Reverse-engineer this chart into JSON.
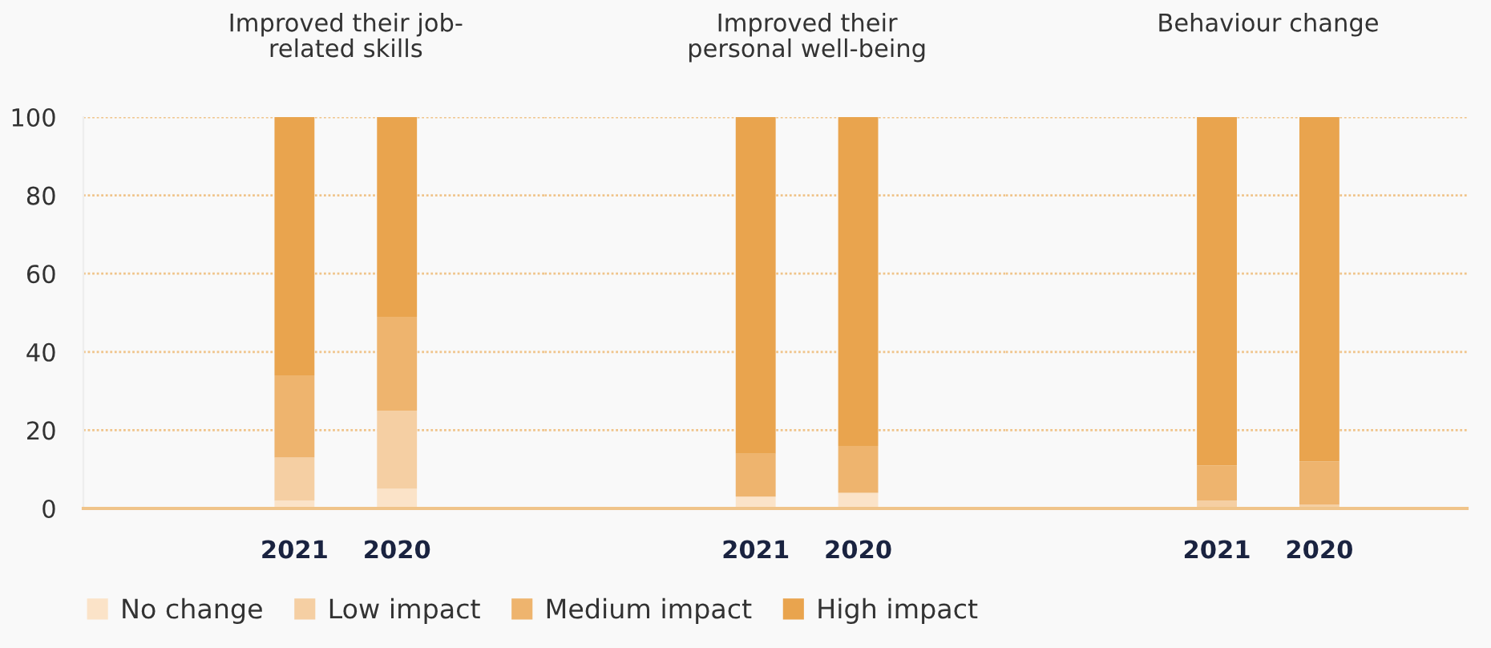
{
  "chart_data": [
    {
      "type": "bar",
      "title": "Improved their job-\nrelated skills",
      "categories": [
        "2021",
        "2020"
      ],
      "stacked": true,
      "ylim": [
        0,
        100
      ],
      "yticks": [
        0,
        20,
        40,
        60,
        80,
        100
      ],
      "grid": "y",
      "legend": "bottom",
      "series": [
        {
          "name": "No change",
          "color": "#fbe3c8",
          "values": [
            2,
            5
          ]
        },
        {
          "name": "Low impact",
          "color": "#f5cfa3",
          "values": [
            11,
            20
          ]
        },
        {
          "name": "Medium impact",
          "color": "#eeb46e",
          "values": [
            21,
            24
          ]
        },
        {
          "name": "High impact",
          "color": "#e9a44e",
          "values": [
            66,
            51
          ]
        }
      ]
    },
    {
      "type": "bar",
      "title": "Improved their\npersonal well-being",
      "categories": [
        "2021",
        "2020"
      ],
      "stacked": true,
      "ylim": [
        0,
        100
      ],
      "yticks": [
        0,
        20,
        40,
        60,
        80,
        100
      ],
      "grid": "y",
      "tick_labels": "x",
      "series": [
        {
          "color": "#fbe3c8",
          "values": [
            3,
            4
          ]
        },
        {
          "color": "#f5cfa3",
          "values": [
            0,
            0
          ]
        },
        {
          "color": "#eeb46e",
          "values": [
            11,
            12
          ]
        },
        {
          "color": "#e9a44e",
          "values": [
            86,
            84
          ]
        }
      ]
    },
    {
      "type": "bar",
      "title": "Behaviour change",
      "categories": [
        "2021",
        "2020"
      ],
      "stacked": true,
      "ylim": [
        0,
        100
      ],
      "yticks": [
        0,
        20,
        40,
        60,
        80,
        100
      ],
      "grid": "y",
      "tick_labels": "x",
      "series": [
        {
          "color": "#fbe3c8",
          "values": [
            0,
            0
          ]
        },
        {
          "color": "#f5cfa3",
          "values": [
            2,
            1
          ]
        },
        {
          "color": "#eeb46e",
          "values": [
            9,
            11
          ]
        },
        {
          "color": "#e9a44e",
          "values": [
            89,
            88
          ]
        }
      ]
    }
  ]
}
